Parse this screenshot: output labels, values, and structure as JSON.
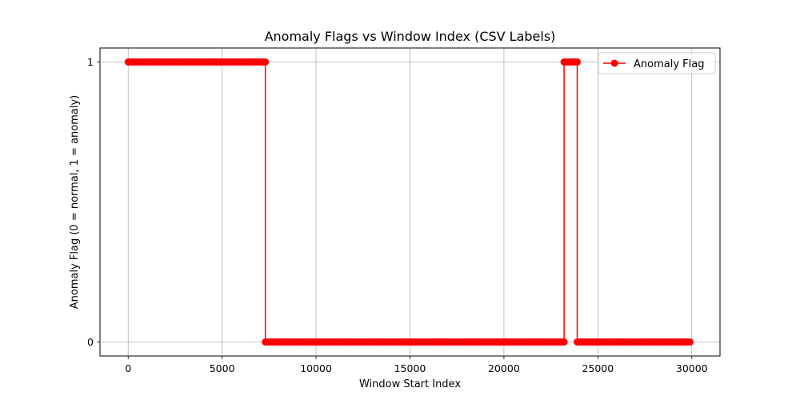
{
  "chart_data": {
    "type": "line",
    "title": "Anomaly Flags vs Window Index (CSV Labels)",
    "xlabel": "Window Start Index",
    "ylabel": "Anomaly Flag (0 = normal, 1 = anomaly)",
    "xlim": [
      -1500,
      31500
    ],
    "ylim": [
      -0.05,
      1.05
    ],
    "xticks": [
      0,
      5000,
      10000,
      15000,
      20000,
      25000,
      30000
    ],
    "yticks": [
      0,
      1
    ],
    "grid": true,
    "legend_position": "top-right",
    "window_step": 100,
    "segments": [
      {
        "x_start": 0,
        "x_end": 7300,
        "value": 1
      },
      {
        "x_start": 7300,
        "x_end": 23200,
        "value": 0
      },
      {
        "x_start": 23200,
        "x_end": 23900,
        "value": 1
      },
      {
        "x_start": 23900,
        "x_end": 29900,
        "value": 0
      }
    ],
    "series": [
      {
        "name": "Anomaly Flag",
        "color": "#ff0000",
        "marker": "circle"
      }
    ]
  }
}
